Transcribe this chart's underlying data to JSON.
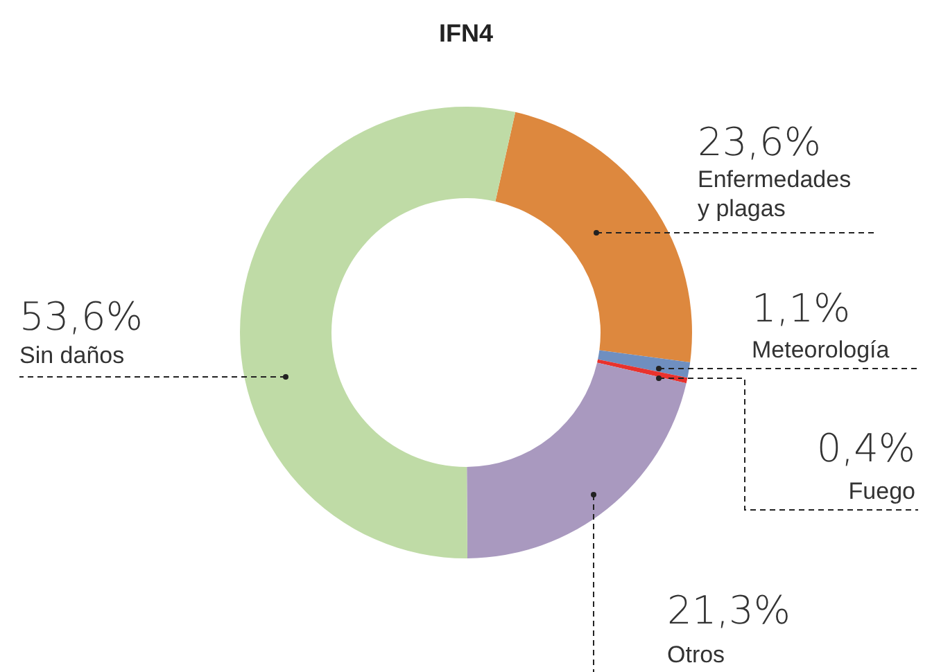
{
  "chart_data": {
    "type": "donut",
    "title": "IFN4",
    "categories": [
      "Enfermedades y plagas",
      "Meteorología",
      "Fuego",
      "Otros",
      "Sin daños"
    ],
    "values": [
      23.6,
      1.1,
      0.4,
      21.3,
      53.6
    ],
    "colors": [
      "#dd883e",
      "#6f8fc0",
      "#e8322d",
      "#a999bf",
      "#bfdba6"
    ],
    "value_labels": [
      "23,6%",
      "1,1%",
      "0,4%",
      "21,3%",
      "53,6%"
    ]
  }
}
